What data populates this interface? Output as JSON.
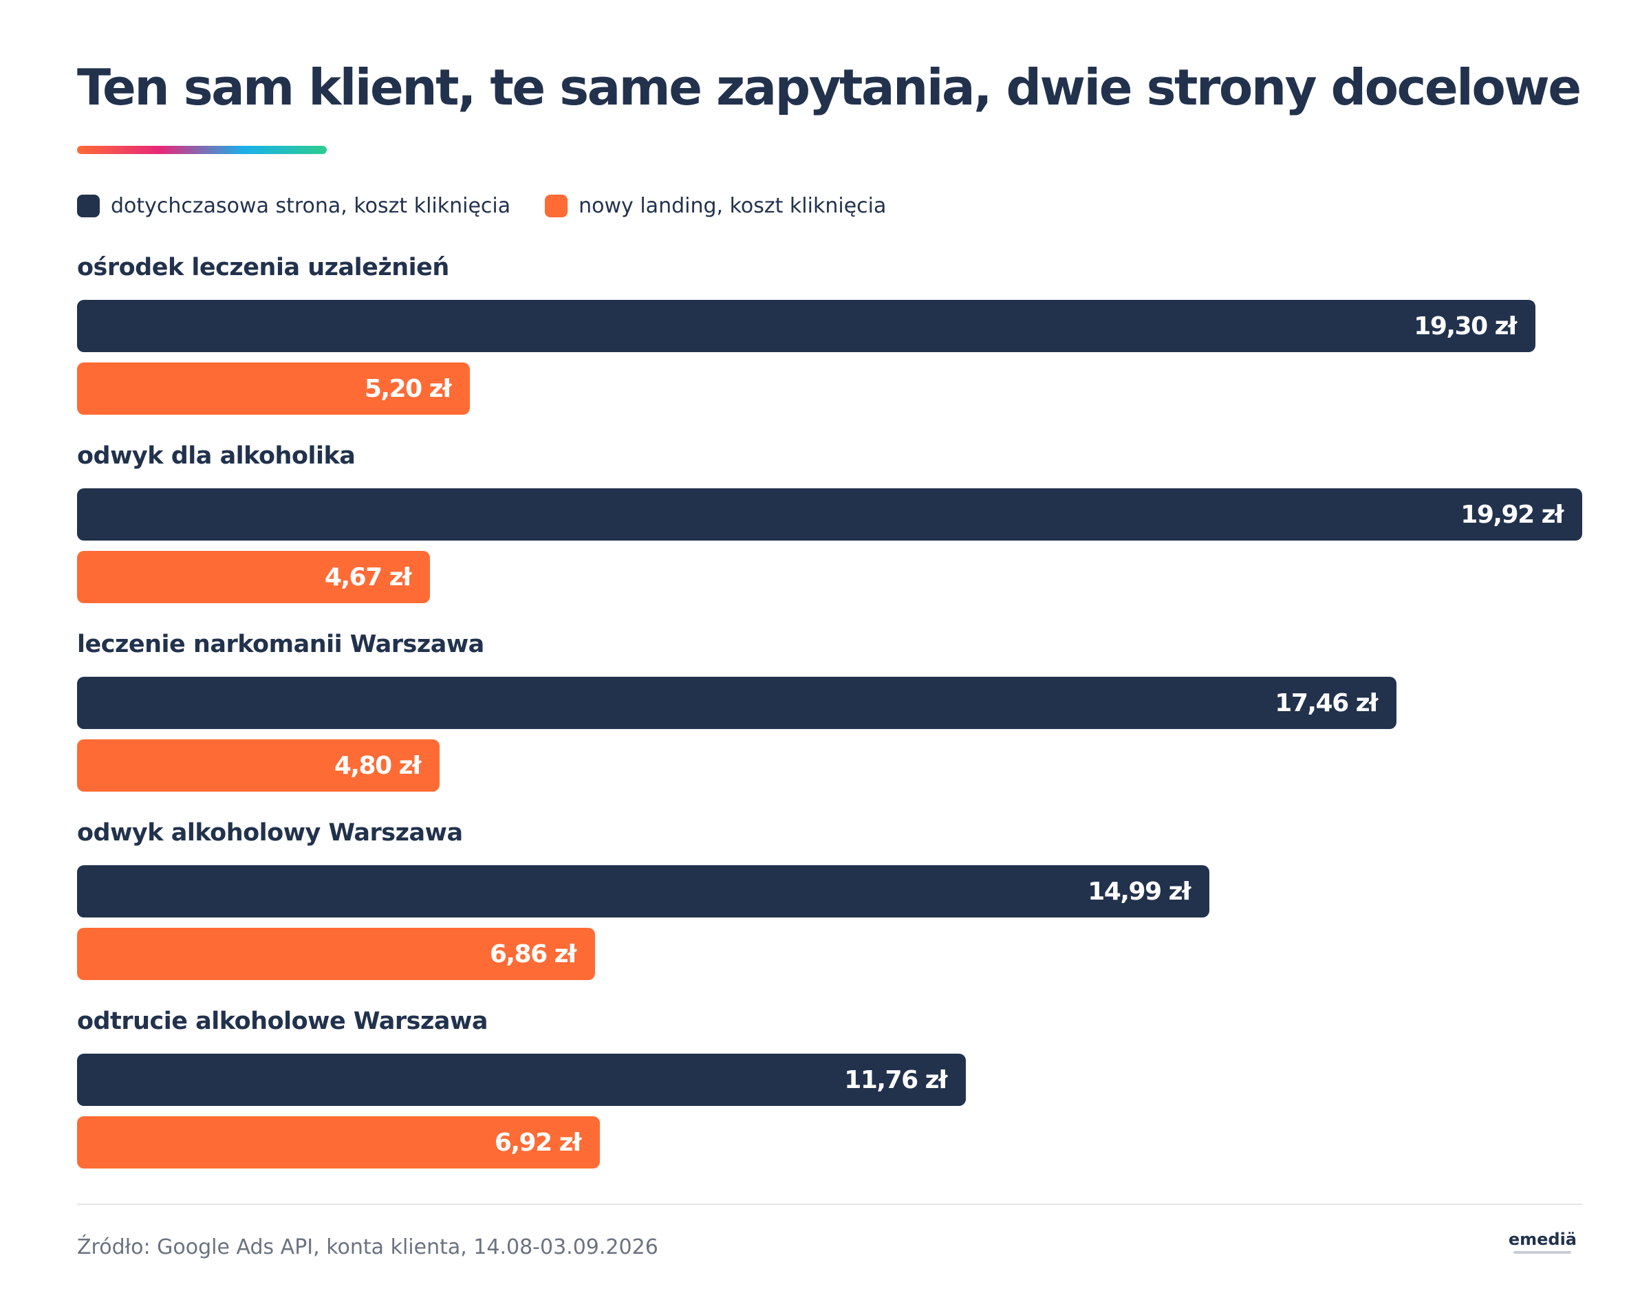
{
  "title": "Ten sam klient, te same zapytania, dwie strony docelowe",
  "colors": {
    "dark_bar": "#22324d",
    "orange_bar": "#ff6b35",
    "underline_gradient": [
      "#ff6b35",
      "#e6287a",
      "#1ab0ea",
      "#2ecc8f"
    ]
  },
  "legend": [
    {
      "label": "dotychczasowa strona, koszt kliknięcia",
      "color": "#22324d"
    },
    {
      "label": "nowy landing, koszt kliknięcia",
      "color": "#ff6b35"
    }
  ],
  "chart_data": {
    "type": "bar",
    "orientation": "horizontal",
    "title": "Ten sam klient, te same zapytania, dwie strony docelowe",
    "xlim": [
      0,
      19.92
    ],
    "grid": false,
    "legend_position": "top-left",
    "categories": [
      "ośrodek leczenia uzależnień",
      "odwyk dla alkoholika",
      "leczenie narkomanii Warszawa",
      "odwyk alkoholowy Warszawa",
      "odtrucie alkoholowe Warszawa"
    ],
    "series": [
      {
        "name": "dotychczasowa strona, koszt kliknięcia",
        "values": [
          19.3,
          19.92,
          17.46,
          14.99,
          11.76
        ],
        "labels": [
          "19,30 zł",
          "19,92 zł",
          "17,46 zł",
          "14,99 zł",
          "11,76 zł"
        ]
      },
      {
        "name": "nowy landing, koszt kliknięcia",
        "values": [
          5.2,
          4.67,
          4.8,
          6.86,
          6.92
        ],
        "labels": [
          "5,20 zł",
          "4,67 zł",
          "4,80 zł",
          "6,86 zł",
          "6,92 zł"
        ]
      }
    ]
  },
  "footer": {
    "source": "Źródło: Google Ads API, konta klienta, 14.08-03.09.2026",
    "logo_text": "emediä"
  }
}
